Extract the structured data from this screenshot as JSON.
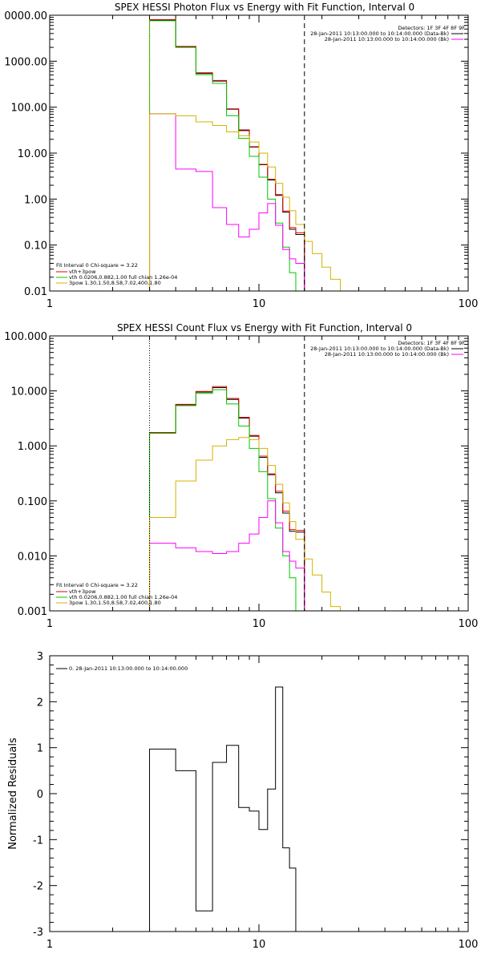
{
  "chart_data": [
    {
      "type": "line",
      "title": "SPEX HESSI Photon Flux vs Energy with Fit Function, Interval 0",
      "xscale": "log",
      "yscale": "log",
      "xlim": [
        1,
        100
      ],
      "ylim": [
        0.01,
        10000
      ],
      "x_tick_labels": [
        "1",
        "10",
        "100"
      ],
      "y_tick_labels": [
        "0.01",
        "0.10",
        "1.00",
        "10.00",
        "100.00",
        "1000.00",
        "0000.00"
      ],
      "info_right": [
        "Detectors: 1F 3F 4F 8F 9F",
        "28-Jan-2011 10:13:00.000 to 10:14:00.000 (Data-Bk)",
        "28-Jan-2011 10:13:00.000 to 10:14:00.000 (Bk)"
      ],
      "legend": [
        "Fit Interval 0   Chi-square = 3.22",
        "vth+3pow",
        "vth 0.0206,0.882,1.00  full chian 1.26e-04",
        "3pow 1.30,1.50,8.58,7.02,400,1.80"
      ],
      "vlines": [
        {
          "x": 3.0,
          "style": "dotted",
          "color": "#d4b400"
        },
        {
          "x": 16.5,
          "style": "dashed",
          "color": "#000000"
        }
      ],
      "edges": [
        3.0,
        4.0,
        5.0,
        6.0,
        7.0,
        8.0,
        9.0,
        10.0,
        11.0,
        12.0,
        13.0,
        14.0,
        15.0,
        16.5,
        18.0,
        20.0,
        22.0,
        24.5,
        27.0
      ],
      "series": [
        {
          "color": "#000000",
          "values": [
            7800,
            2050,
            540,
            370,
            90,
            31,
            13.5,
            5.6,
            2.6,
            1.2,
            0.52,
            0.22,
            0.17
          ]
        },
        {
          "color": "#e00000",
          "values": [
            8000,
            2100,
            560,
            380,
            92,
            32,
            13.8,
            5.7,
            2.7,
            1.25,
            0.55,
            0.24,
            0.185
          ]
        },
        {
          "color": "#00c800",
          "values": [
            7600,
            2000,
            510,
            330,
            65,
            21,
            8.5,
            3.0,
            1.0,
            0.3,
            0.09,
            0.025,
            0.008
          ]
        },
        {
          "color": "#ff00ff",
          "values": [
            72,
            4.5,
            4.0,
            0.65,
            0.28,
            0.15,
            0.22,
            0.5,
            0.8,
            0.27,
            0.08,
            0.05,
            0.04
          ]
        },
        {
          "color": "#d4b400",
          "values": [
            72,
            65,
            48,
            40,
            29,
            24,
            17.5,
            10,
            5,
            2.2,
            1.1,
            0.56,
            0.28,
            0.12,
            0.065,
            0.033,
            0.018,
            0.01
          ]
        }
      ]
    },
    {
      "type": "line",
      "title": "SPEX HESSI Count Flux vs Energy with Fit Function, Interval 0",
      "xscale": "log",
      "yscale": "log",
      "xlim": [
        1,
        100
      ],
      "ylim": [
        0.001,
        100
      ],
      "x_tick_labels": [
        "1",
        "10",
        "100"
      ],
      "y_tick_labels": [
        "0.001",
        "0.010",
        "0.100",
        "1.000",
        "10.000",
        "100.000"
      ],
      "info_right": [
        "Detectors: 1F 3F 4F 8F 9F",
        "28-Jan-2011 10:13:00.000 to 10:14:00.000 (Data-Bk)",
        "28-Jan-2011 10:13:00.000 to 10:14:00.000 (Bk)"
      ],
      "legend": [
        "Fit Interval 0   Chi-square = 3.22",
        "vth+3pow",
        "vth 0.0206,0.882,1.00  full chian 1.26e-04",
        "3pow 1.30,1.50,8.58,7.02,400,1.80"
      ],
      "vlines": [
        {
          "x": 3.0,
          "style": "dotted",
          "color": "#000000"
        },
        {
          "x": 16.5,
          "style": "dashed",
          "color": "#000000"
        }
      ],
      "edges": [
        3.0,
        4.0,
        5.0,
        6.0,
        7.0,
        8.0,
        9.0,
        10.0,
        11.0,
        12.0,
        13.0,
        14.0,
        15.0,
        16.5,
        18.0,
        20.0,
        22.0,
        24.5,
        27.0
      ],
      "series": [
        {
          "color": "#000000",
          "values": [
            1.7,
            5.6,
            9.5,
            11.5,
            7.0,
            3.2,
            1.5,
            0.62,
            0.3,
            0.14,
            0.06,
            0.028,
            0.027
          ]
        },
        {
          "color": "#e00000",
          "values": [
            1.75,
            5.7,
            9.8,
            12.0,
            7.3,
            3.3,
            1.55,
            0.65,
            0.31,
            0.15,
            0.065,
            0.03,
            0.029
          ]
        },
        {
          "color": "#00c800",
          "values": [
            1.7,
            5.4,
            9.0,
            10.5,
            5.8,
            2.3,
            0.9,
            0.34,
            0.11,
            0.032,
            0.01,
            0.004,
            0.001
          ]
        },
        {
          "color": "#ff00ff",
          "values": [
            0.017,
            0.014,
            0.012,
            0.011,
            0.012,
            0.017,
            0.025,
            0.05,
            0.1,
            0.04,
            0.012,
            0.008,
            0.006
          ]
        },
        {
          "color": "#d4b400",
          "values": [
            0.05,
            0.23,
            0.55,
            1.0,
            1.3,
            1.42,
            1.3,
            0.9,
            0.44,
            0.2,
            0.092,
            0.042,
            0.02,
            0.0088,
            0.0045,
            0.0022,
            0.0012
          ]
        }
      ]
    },
    {
      "type": "line",
      "title": "",
      "ylabel": "Normalized Residuals",
      "xscale": "log",
      "yscale": "linear",
      "xlim": [
        1,
        100
      ],
      "ylim": [
        -3,
        3
      ],
      "x_tick_labels": [
        "1",
        "10",
        "100"
      ],
      "y_tick_labels": [
        "-3",
        "-2",
        "-1",
        "0",
        "1",
        "2",
        "3"
      ],
      "legend": [
        "0. 28-Jan-2011 10:13:00.000 to 10:14:00.000"
      ],
      "edges": [
        3.0,
        4.0,
        5.0,
        6.0,
        7.0,
        8.0,
        9.0,
        10.0,
        11.0,
        12.0,
        13.0,
        14.0,
        15.0,
        16.5
      ],
      "series": [
        {
          "color": "#000000",
          "values": [
            0.97,
            0.5,
            -2.55,
            0.68,
            1.05,
            -0.3,
            -0.38,
            -0.78,
            0.1,
            2.32,
            -1.18,
            -1.62
          ]
        }
      ]
    }
  ]
}
